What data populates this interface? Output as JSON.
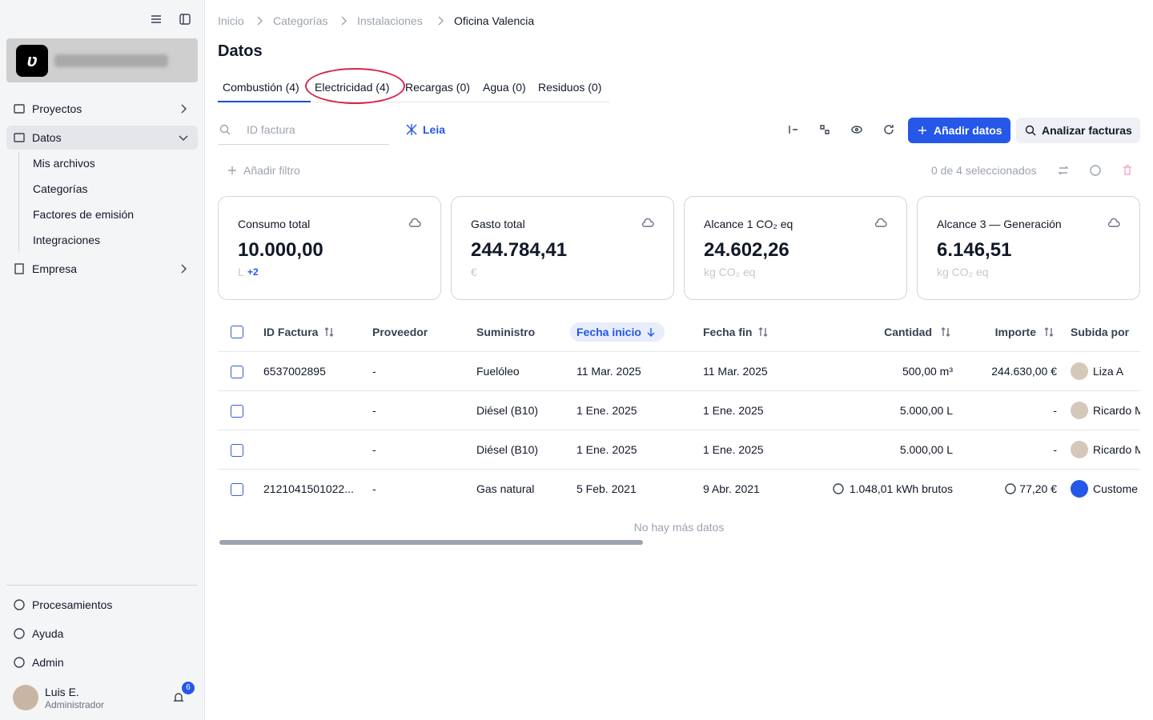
{
  "sidebar": {
    "nav": [
      {
        "label": "Proyectos"
      },
      {
        "label": "Datos",
        "children": [
          "Mis archivos",
          "Categorías",
          "Factores de emisión",
          "Integraciones"
        ]
      },
      {
        "label": "Empresa"
      }
    ],
    "footer_nav": [
      "Procesamientos",
      "Ayuda",
      "Admin"
    ],
    "user": {
      "name": "Luis E.",
      "role": "Administrador",
      "notifications": "6"
    }
  },
  "breadcrumb": [
    "Inicio",
    "Categorías",
    "Instalaciones",
    "Oficina Valencia"
  ],
  "title": "Datos",
  "tabs": [
    "Combustión (4)",
    "Electricidad (4)",
    "Recargas (0)",
    "Agua (0)",
    "Residuos (0)"
  ],
  "search_placeholder": "ID factura",
  "leia": "Leia",
  "buttons": [
    "Añadir datos",
    "Analizar facturas"
  ],
  "add_filter": "Añadir filtro",
  "selection": "0 de 4 seleccionados",
  "cards": [
    {
      "label": "Consumo total",
      "value": "10.000,00",
      "unit": "L",
      "extra": "+2"
    },
    {
      "label": "Gasto total",
      "value": "244.784,41",
      "unit": "€"
    },
    {
      "label": "Alcance 1 CO₂ eq",
      "value": "24.602,26",
      "unit": "kg CO₂ eq"
    },
    {
      "label": "Alcance 3 — Generación",
      "value": "6.146,51",
      "unit": "kg CO₂ eq"
    }
  ],
  "table": {
    "columns": [
      "ID Factura",
      "Proveedor",
      "Suministro",
      "Fecha inicio",
      "Fecha fin",
      "Cantidad",
      "Importe",
      "Subida por"
    ],
    "rows": [
      [
        "6537002895",
        "-",
        "Fuelóleo",
        "11 Mar. 2025",
        "11 Mar. 2025",
        "500,00 m³",
        "244.630,00 €",
        "Liza A"
      ],
      [
        null,
        "-",
        "Diésel (B10)",
        "1 Ene. 2025",
        "1 Ene. 2025",
        "5.000,00 L",
        "-",
        "Ricardo M"
      ],
      [
        null,
        "-",
        "Diésel (B10)",
        "1 Ene. 2025",
        "1 Ene. 2025",
        "5.000,00 L",
        "-",
        "Ricardo M"
      ],
      [
        "2121041501022...",
        "-",
        "Gas natural",
        "5 Feb. 2021",
        "9 Abr. 2021",
        "1.048,01 kWh brutos",
        "77,20 €",
        "Custome"
      ]
    ],
    "empty_text": "No hay más datos"
  }
}
